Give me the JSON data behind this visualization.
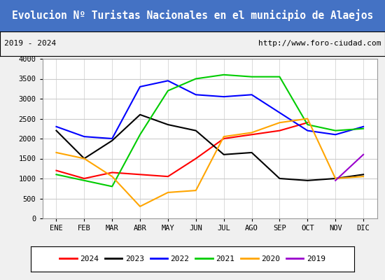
{
  "title": "Evolucion Nº Turistas Nacionales en el municipio de Alaejos",
  "subtitle_left": "2019 - 2024",
  "subtitle_right": "http://www.foro-ciudad.com",
  "title_bg": "#4472c4",
  "title_color": "white",
  "months": [
    "ENE",
    "FEB",
    "MAR",
    "ABR",
    "MAY",
    "JUN",
    "JUL",
    "AGO",
    "SEP",
    "OCT",
    "NOV",
    "DIC"
  ],
  "ylim": [
    0,
    4000
  ],
  "yticks": [
    0,
    500,
    1000,
    1500,
    2000,
    2500,
    3000,
    3500,
    4000
  ],
  "series": {
    "2024": {
      "color": "#ff0000",
      "values": [
        1200,
        1000,
        1150,
        1100,
        1050,
        1500,
        2000,
        2100,
        2200,
        2400,
        null,
        null
      ]
    },
    "2023": {
      "color": "#000000",
      "values": [
        2200,
        1500,
        1950,
        2600,
        2350,
        2200,
        1600,
        1650,
        1000,
        950,
        1000,
        1100
      ]
    },
    "2022": {
      "color": "#0000ff",
      "values": [
        2300,
        2050,
        2000,
        3300,
        3450,
        3100,
        3050,
        3100,
        2650,
        2200,
        2100,
        2300
      ]
    },
    "2021": {
      "color": "#00cc00",
      "values": [
        1100,
        950,
        800,
        2100,
        3200,
        3500,
        3600,
        3550,
        3550,
        2350,
        2200,
        2250
      ]
    },
    "2020": {
      "color": "#ffa500",
      "values": [
        1650,
        1500,
        1050,
        300,
        650,
        700,
        2050,
        2150,
        2400,
        2500,
        1000,
        1050
      ]
    },
    "2019": {
      "color": "#9900cc",
      "values": [
        null,
        null,
        null,
        null,
        null,
        null,
        null,
        null,
        null,
        null,
        950,
        1600
      ]
    }
  },
  "legend_order": [
    "2024",
    "2023",
    "2022",
    "2021",
    "2020",
    "2019"
  ],
  "background_color": "#f0f0f0",
  "plot_bg": "#ffffff",
  "grid_color": "#cccccc"
}
